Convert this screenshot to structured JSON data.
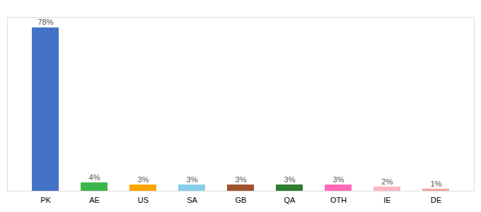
{
  "chart_data": {
    "type": "bar",
    "categories": [
      "PK",
      "AE",
      "US",
      "SA",
      "GB",
      "QA",
      "OTH",
      "IE",
      "DE"
    ],
    "values": [
      78,
      4,
      3,
      3,
      3,
      3,
      3,
      2,
      1
    ],
    "value_labels": [
      "78%",
      "4%",
      "3%",
      "3%",
      "3%",
      "3%",
      "3%",
      "2%",
      "1%"
    ],
    "colors": [
      "#4472C4",
      "#3CB54A",
      "#FFA500",
      "#87CEEB",
      "#A0522D",
      "#2E7D32",
      "#FF69B4",
      "#FFB6C1",
      "#F4A5A0"
    ],
    "ylim": [
      0,
      83
    ],
    "data_labels": true,
    "tick_labels": "x",
    "grid": false
  }
}
